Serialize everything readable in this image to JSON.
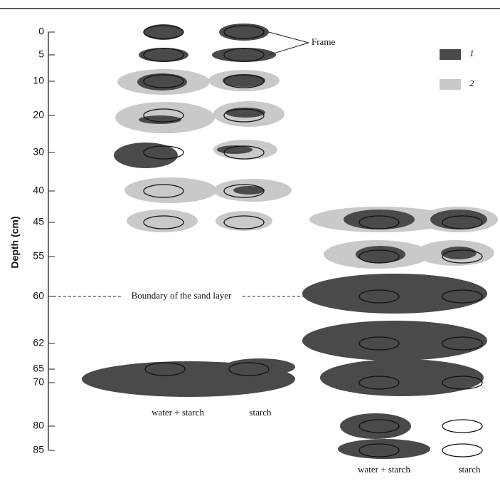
{
  "axis": {
    "title": "Depth (cm)",
    "ticks": [
      "0",
      "5",
      "10",
      "20",
      "30",
      "40",
      "45",
      "55",
      "60",
      "62",
      "65",
      "70",
      "80",
      "85"
    ]
  },
  "annotations": {
    "frame": "Frame",
    "boundary": "Boundary of the sand layer"
  },
  "legend": [
    {
      "label": "1"
    },
    {
      "label": "2"
    }
  ],
  "columns": [
    "water + starch",
    "starch",
    "water + starch",
    "starch"
  ]
}
